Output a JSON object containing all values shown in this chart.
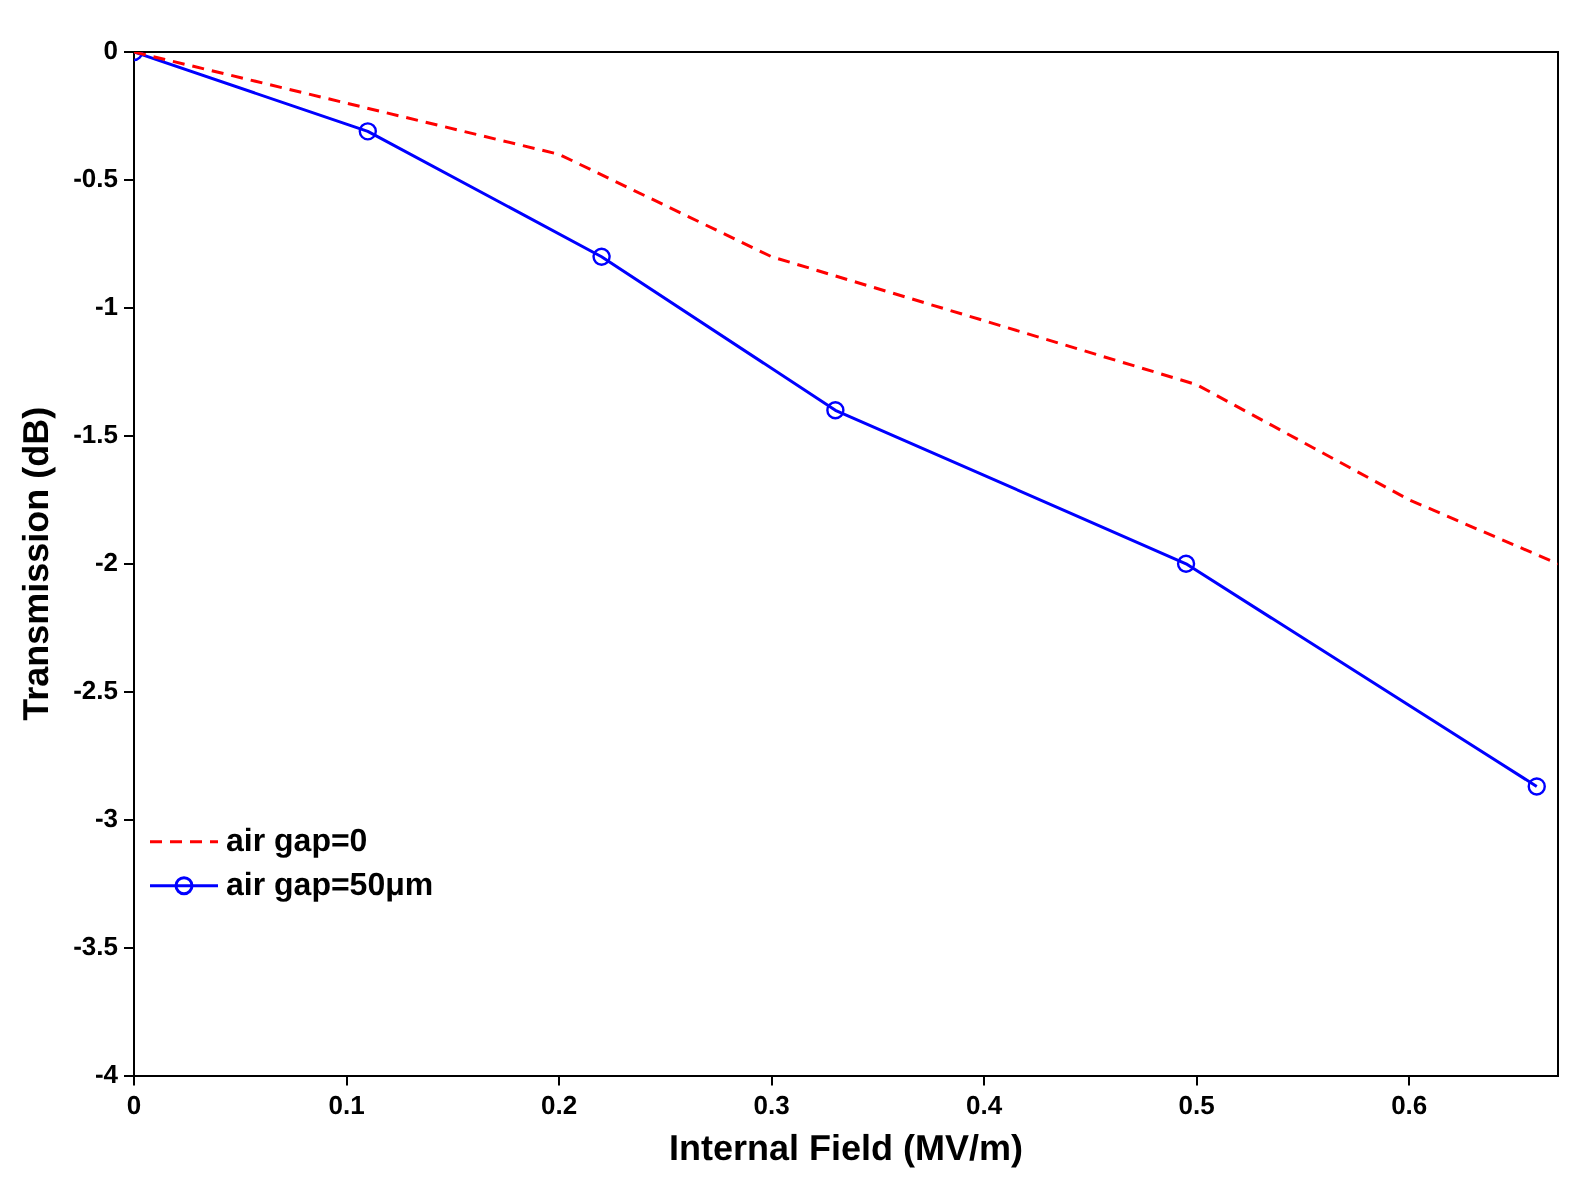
{
  "chart_data": {
    "type": "line",
    "xlabel": "Internal Field (MV/m)",
    "ylabel": "Transmission (dB)",
    "xlim": [
      0,
      0.67
    ],
    "xticks": [
      0,
      0.1,
      0.2,
      0.3,
      0.4,
      0.5,
      0.6
    ],
    "ylim": [
      -4,
      0
    ],
    "yticks": [
      -4,
      -3.5,
      -3,
      -2.5,
      -2,
      -1.5,
      -1,
      -0.5,
      0
    ],
    "grid": false,
    "legend": "bottom left",
    "series": [
      {
        "name": "air gap=0",
        "color": "#ff0000",
        "line_style": "dashed",
        "marker": "none",
        "x": [
          0,
          0.2,
          0.3,
          0.4,
          0.5,
          0.6,
          0.67
        ],
        "values": [
          0,
          -0.4,
          -0.8,
          -1.05,
          -1.3,
          -1.75,
          -2.0
        ]
      },
      {
        "name": "air gap=50μm",
        "color": "#0000ff",
        "line_style": "solid",
        "marker": "circle",
        "x": [
          0,
          0.11,
          0.22,
          0.33,
          0.495,
          0.66
        ],
        "values": [
          0,
          -0.31,
          -0.8,
          -1.4,
          -2.0,
          -2.87
        ]
      }
    ]
  }
}
